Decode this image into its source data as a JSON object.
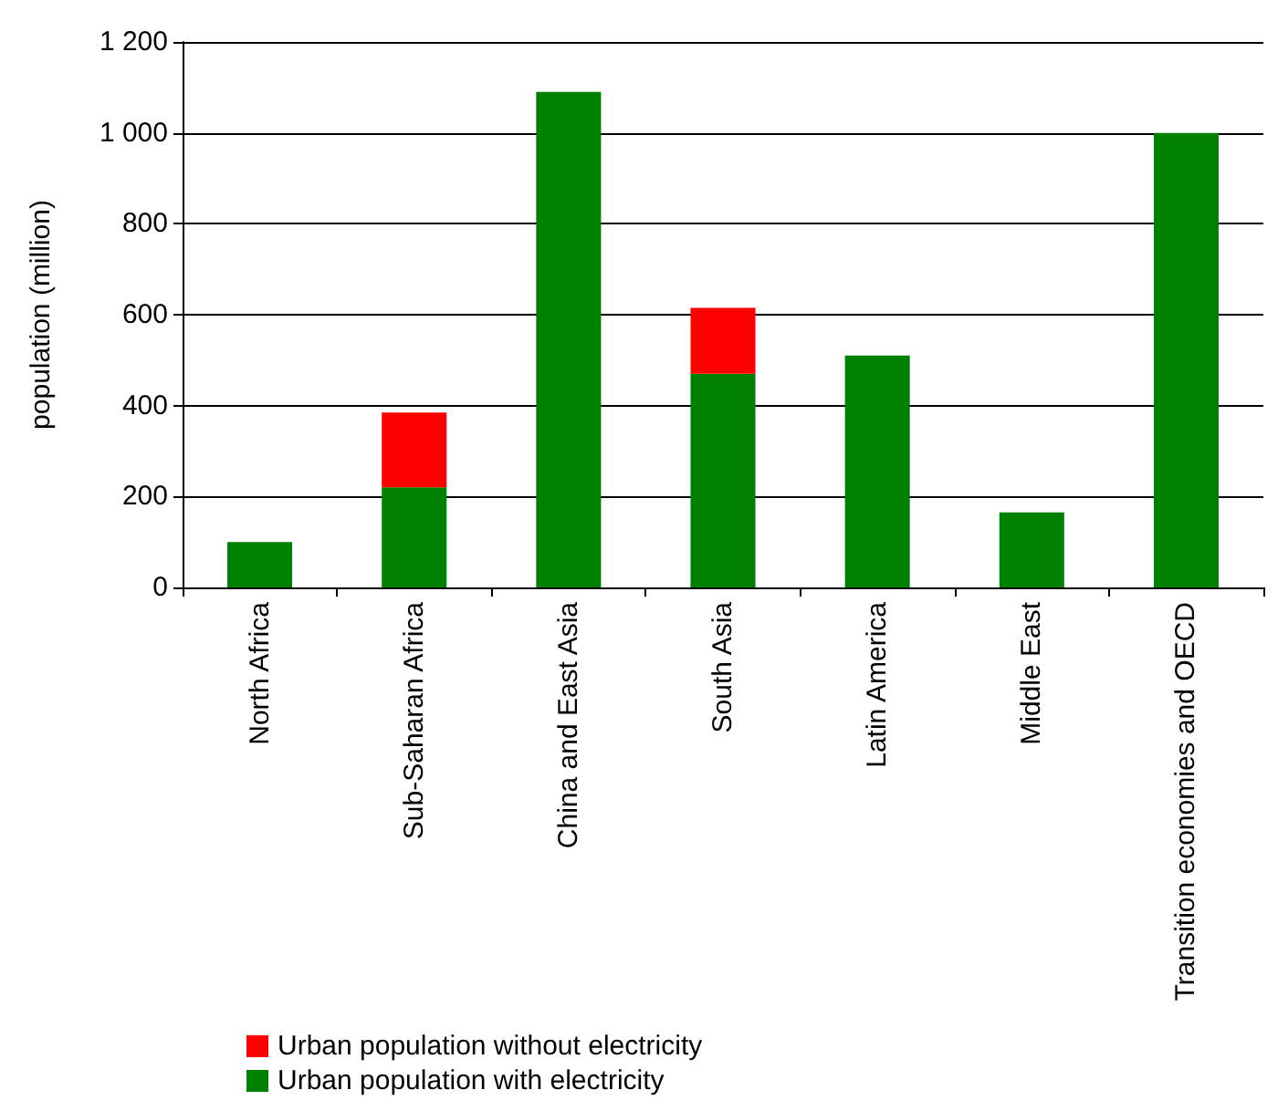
{
  "chart_data": {
    "type": "bar",
    "ylabel": "population (million)",
    "categories": [
      "North Africa",
      "Sub-Saharan Africa",
      "China and East Asia",
      "South Asia",
      "Latin America",
      "Middle East",
      "Transition economies and OECD"
    ],
    "series": [
      {
        "name": "Urban population with electricity",
        "color": "#008000",
        "values": [
          100,
          220,
          1090,
          470,
          510,
          165,
          1000
        ]
      },
      {
        "name": "Urban population without electricity",
        "color": "#ff0000",
        "values": [
          0,
          165,
          0,
          145,
          0,
          0,
          0
        ]
      }
    ],
    "stacked": true,
    "ylim": [
      0,
      1200
    ],
    "yticks": [
      0,
      200,
      400,
      600,
      800,
      {
        "value": 1000,
        "label": "1 000"
      },
      {
        "value": 1200,
        "label": "1 200"
      }
    ],
    "grid": "y",
    "legend": "bottom left"
  }
}
